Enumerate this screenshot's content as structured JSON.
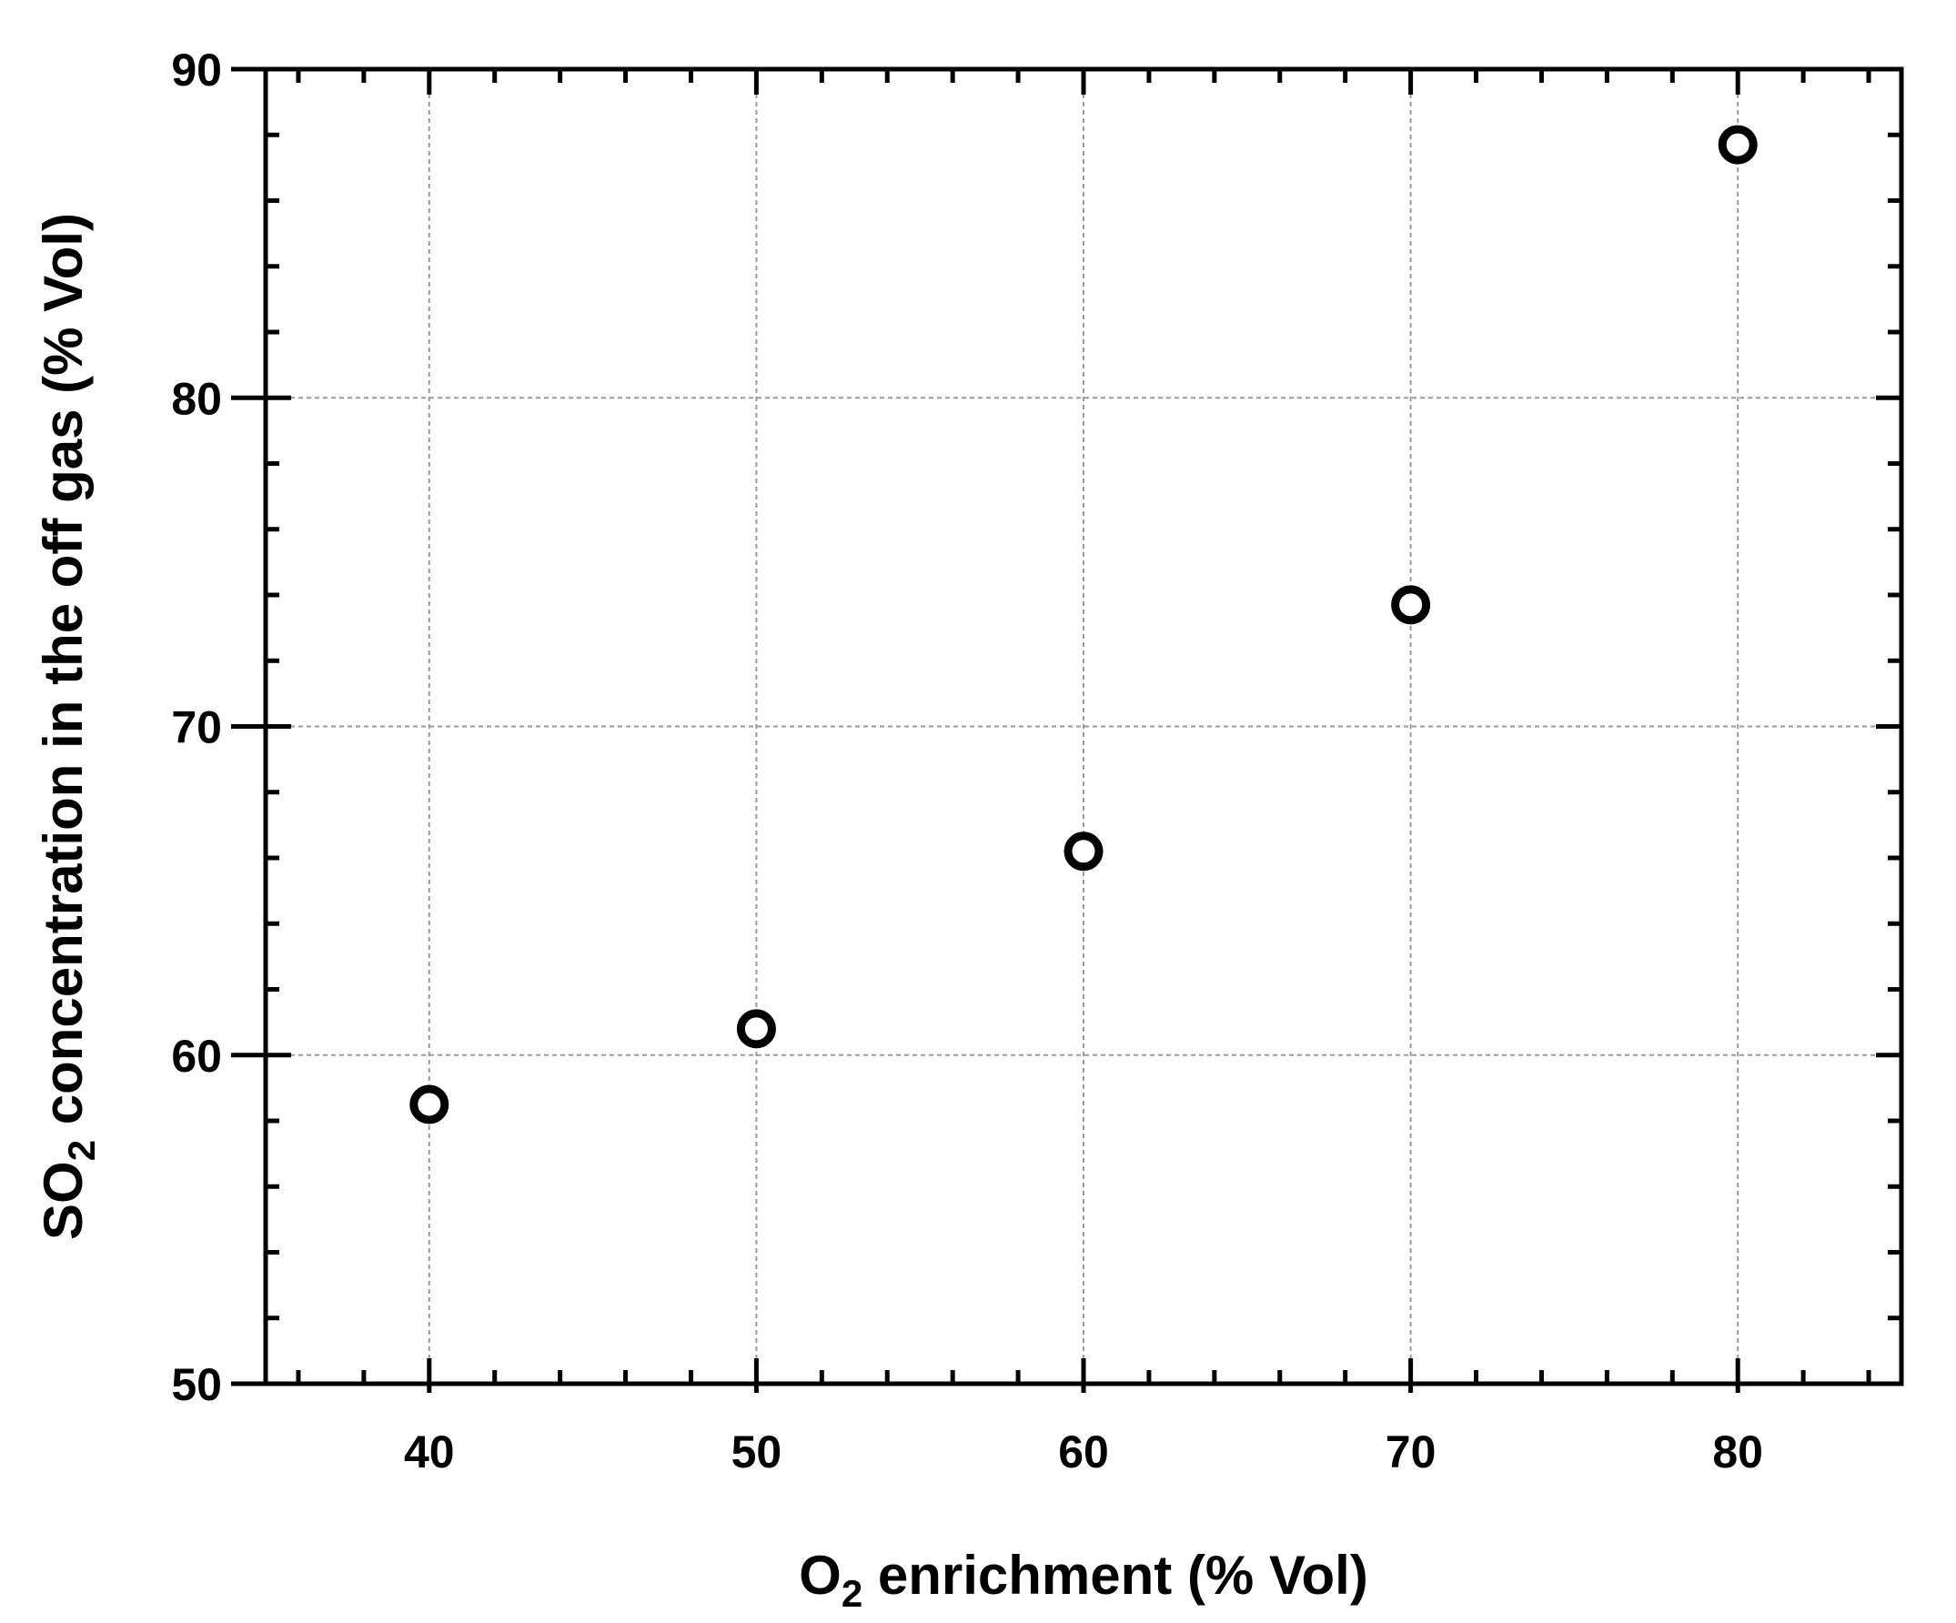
{
  "chart_data": {
    "type": "scatter",
    "title": "",
    "xlabel": {
      "prefix": "O",
      "sub": "2",
      "suffix": " enrichment (% Vol)"
    },
    "ylabel": {
      "prefix": "SO",
      "sub": "2",
      "suffix": " concentration in the off gas (% Vol)"
    },
    "xlim": [
      35,
      85
    ],
    "ylim": [
      50,
      90
    ],
    "x_ticks": [
      40,
      50,
      60,
      70,
      80
    ],
    "y_ticks": [
      50,
      60,
      70,
      80,
      90
    ],
    "x_minor_step": 2,
    "y_minor_step": 2,
    "grid": true,
    "marker": "open-circle",
    "colors": {
      "axis": "#000000",
      "grid": "#9a9a9a",
      "marker": "#000000"
    },
    "series": [
      {
        "x": [
          40,
          50,
          60,
          70,
          80
        ],
        "y": [
          58.5,
          60.8,
          66.2,
          73.7,
          87.7
        ]
      }
    ]
  }
}
